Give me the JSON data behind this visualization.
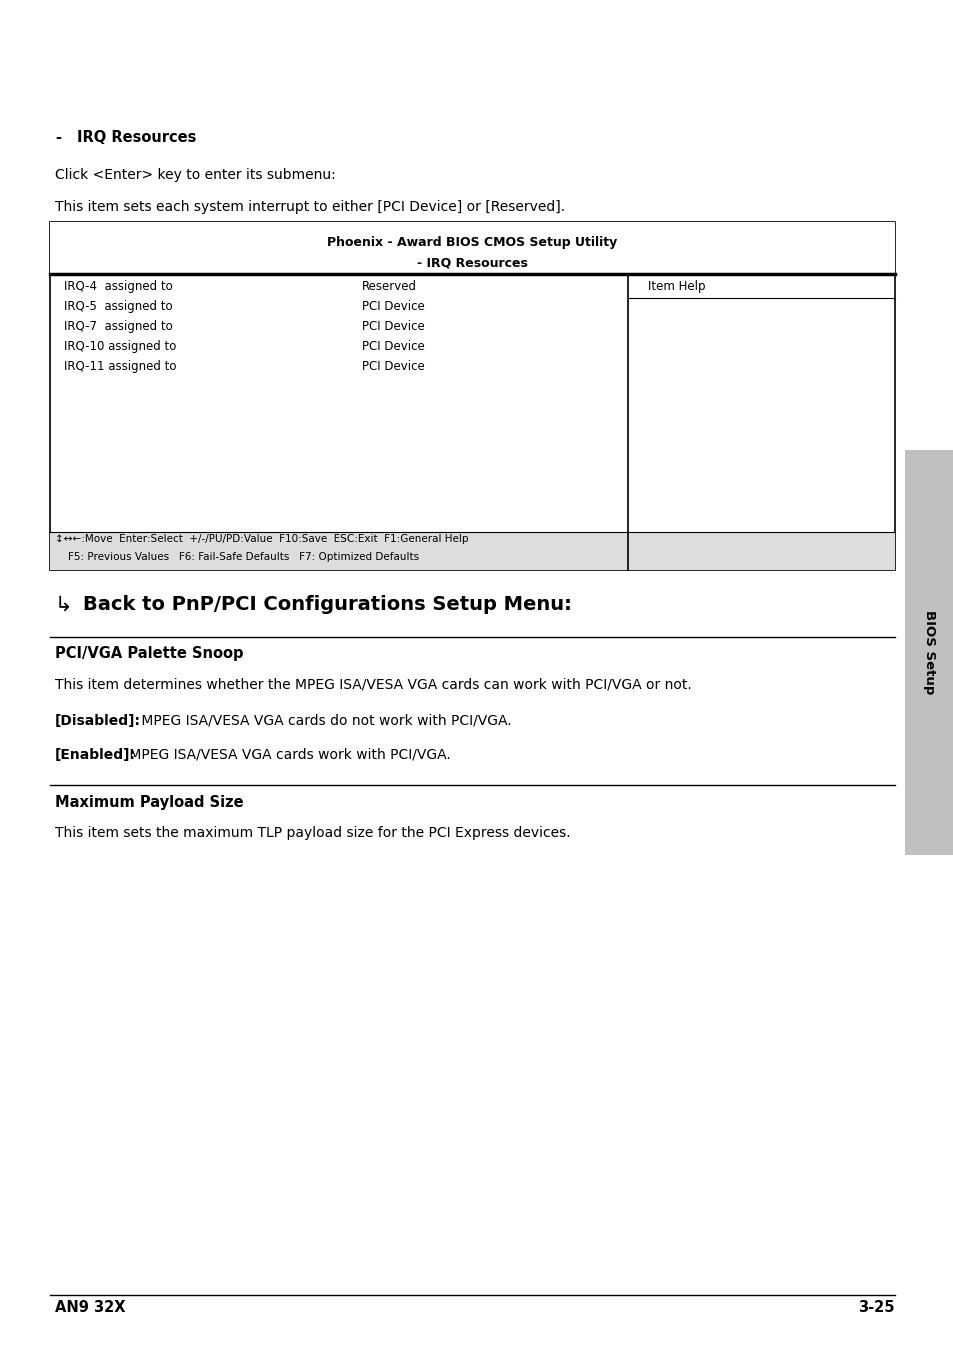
{
  "page_bg": "#ffffff",
  "sidebar_color": "#c0c0c0",
  "sidebar_text": "BIOS Setup",
  "bullet_dash": "-",
  "bullet_heading": "IRQ Resources",
  "para1": "Click <Enter> key to enter its submenu:",
  "para2": "This item sets each system interrupt to either [PCI Device] or [Reserved].",
  "bios_title1": "Phoenix - Award BIOS CMOS Setup Utility",
  "bios_title2": "- IRQ Resources",
  "bios_rows": [
    [
      "IRQ-4  assigned to",
      "Reserved",
      "Item Help"
    ],
    [
      "IRQ-5  assigned to",
      "PCI Device",
      ""
    ],
    [
      "IRQ-7  assigned to",
      "PCI Device",
      ""
    ],
    [
      "IRQ-10 assigned to",
      "PCI Device",
      ""
    ],
    [
      "IRQ-11 assigned to",
      "PCI Device",
      ""
    ]
  ],
  "bios_footer1": "↕↔←:Move  Enter:Select  +/-/PU/PD:Value  F10:Save  ESC:Exit  F1:General Help",
  "bios_footer2": "    F5: Previous Values   F6: Fail-Safe Defaults   F7: Optimized Defaults",
  "section_arrow": "↳",
  "section_heading": "Back to PnP/PCI Configurations Setup Menu:",
  "subsec1_title": "PCI/VGA Palette Snoop",
  "subsec1_para": "This item determines whether the MPEG ISA/VESA VGA cards can work with PCI/VGA or not.",
  "subsec1_disabled_bold": "[Disabled]:",
  "subsec1_disabled_rest": " MPEG ISA/VESA VGA cards do not work with PCI/VGA.",
  "subsec1_enabled_bold": "[Enabled]:",
  "subsec1_enabled_rest": " MPEG ISA/VESA VGA cards work with PCI/VGA.",
  "subsec2_title": "Maximum Payload Size",
  "subsec2_para": "This item sets the maximum TLP payload size for the PCI Express devices.",
  "footer_left": "AN9 32X",
  "footer_right": "3-25"
}
